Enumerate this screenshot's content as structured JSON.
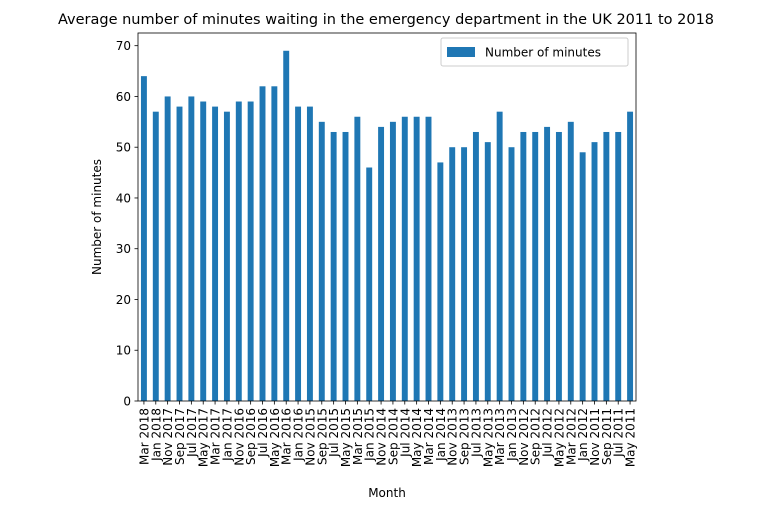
{
  "chart_data": {
    "type": "bar",
    "title": "Average number of minutes waiting in the emergency department in the UK 2011 to 2018",
    "xlabel": "Month",
    "ylabel": "Number of minutes",
    "ylim": [
      0,
      72.5
    ],
    "yticks": [
      0,
      10,
      20,
      30,
      40,
      50,
      60,
      70
    ],
    "grid": false,
    "legend_position": "top-right",
    "colors": {
      "bar": "#1f77b4",
      "axis": "#000000"
    },
    "categories": [
      "Mar 2018",
      "Jan 2018",
      "Nov 2017",
      "Sep 2017",
      "Jul 2017",
      "May 2017",
      "Mar 2017",
      "Jan 2017",
      "Nov 2016",
      "Sep 2016",
      "Jul 2016",
      "May 2016",
      "Mar 2016",
      "Jan 2016",
      "Nov 2015",
      "Sep 2015",
      "Jul 2015",
      "May 2015",
      "Mar 2015",
      "Jan 2015",
      "Nov 2014",
      "Sep 2014",
      "Jul 2014",
      "May 2014",
      "Mar 2014",
      "Jan 2014",
      "Nov 2013",
      "Sep 2013",
      "Jul 2013",
      "May 2013",
      "Mar 2013",
      "Jan 2013",
      "Nov 2012",
      "Sep 2012",
      "Jul 2012",
      "May 2012",
      "Mar 2012",
      "Jan 2012",
      "Nov 2011",
      "Sep 2011",
      "Jul 2011",
      "May 2011"
    ],
    "series": [
      {
        "name": "Number of minutes",
        "values": [
          64,
          57,
          60,
          58,
          60,
          59,
          58,
          57,
          59,
          59,
          62,
          62,
          69,
          58,
          58,
          55,
          53,
          53,
          56,
          46,
          54,
          55,
          56,
          56,
          56,
          47,
          50,
          50,
          53,
          51,
          57,
          50,
          53,
          53,
          54,
          53,
          55,
          49,
          51,
          53,
          53,
          57
        ]
      }
    ]
  }
}
